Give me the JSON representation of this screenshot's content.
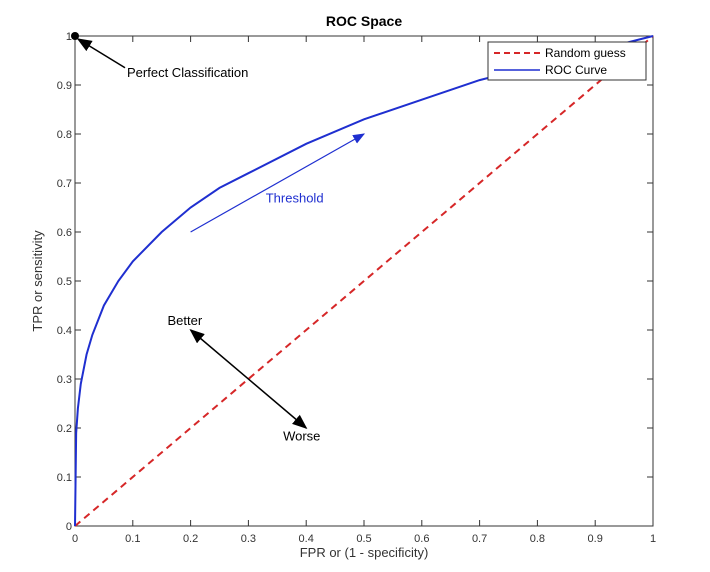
{
  "chart_data": {
    "type": "line",
    "title": "ROC Space",
    "xlabel": "FPR or (1 - specificity)",
    "ylabel": "TPR or sensitivity",
    "xlim": [
      0,
      1
    ],
    "ylim": [
      0,
      1
    ],
    "xticks": [
      "0",
      "0.1",
      "0.2",
      "0.3",
      "0.4",
      "0.5",
      "0.6",
      "0.7",
      "0.8",
      "0.9",
      "1"
    ],
    "yticks": [
      "0",
      "0.1",
      "0.2",
      "0.3",
      "0.4",
      "0.5",
      "0.6",
      "0.7",
      "0.8",
      "0.9",
      "1"
    ],
    "grid": false,
    "legend_position": "top-right",
    "series": [
      {
        "name": "Random guess",
        "color": "#d62728",
        "style": "dashed",
        "x": [
          0,
          1
        ],
        "y": [
          0,
          1
        ]
      },
      {
        "name": "ROC Curve",
        "color": "#1f2fd0",
        "style": "solid",
        "x": [
          0,
          0.002,
          0.005,
          0.01,
          0.02,
          0.03,
          0.05,
          0.075,
          0.1,
          0.15,
          0.2,
          0.25,
          0.3,
          0.4,
          0.5,
          0.6,
          0.7,
          0.8,
          0.9,
          1
        ],
        "y": [
          0,
          0.19,
          0.24,
          0.29,
          0.35,
          0.39,
          0.45,
          0.5,
          0.54,
          0.6,
          0.65,
          0.69,
          0.72,
          0.78,
          0.83,
          0.87,
          0.91,
          0.94,
          0.97,
          1
        ]
      }
    ],
    "annotations": [
      {
        "text": "Perfect Classification",
        "point": [
          0,
          1
        ],
        "text_at": [
          0.09,
          0.925
        ],
        "color": "#000000"
      },
      {
        "text": "Threshold",
        "arrow_from": [
          0.2,
          0.6
        ],
        "arrow_to": [
          0.5,
          0.8
        ],
        "text_at": [
          0.33,
          0.66
        ],
        "color": "#1f2fd0"
      },
      {
        "text": "Better",
        "arrow_from": [
          0.3,
          0.3
        ],
        "arrow_to": [
          0.2,
          0.4
        ],
        "text_at": [
          0.16,
          0.41
        ],
        "color": "#000000"
      },
      {
        "text": "Worse",
        "arrow_from": [
          0.3,
          0.3
        ],
        "arrow_to": [
          0.4,
          0.2
        ],
        "text_at": [
          0.36,
          0.175
        ],
        "color": "#000000"
      }
    ]
  }
}
